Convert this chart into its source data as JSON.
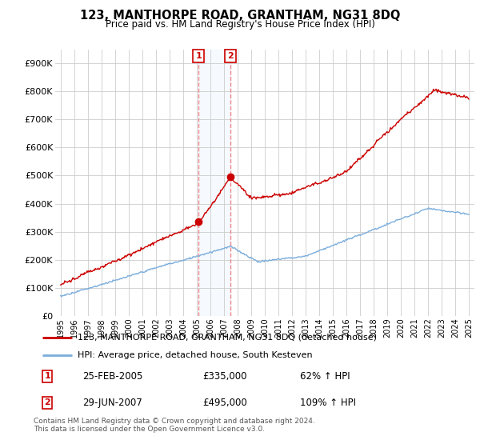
{
  "title": "123, MANTHORPE ROAD, GRANTHAM, NG31 8DQ",
  "subtitle": "Price paid vs. HM Land Registry's House Price Index (HPI)",
  "legend_line1": "123, MANTHORPE ROAD, GRANTHAM, NG31 8DQ (detached house)",
  "legend_line2": "HPI: Average price, detached house, South Kesteven",
  "sale1_date": "25-FEB-2005",
  "sale1_price": "£335,000",
  "sale1_hpi": "62% ↑ HPI",
  "sale2_date": "29-JUN-2007",
  "sale2_price": "£495,000",
  "sale2_hpi": "109% ↑ HPI",
  "footnote": "Contains HM Land Registry data © Crown copyright and database right 2024.\nThis data is licensed under the Open Government Licence v3.0.",
  "red_color": "#cc0000",
  "blue_color": "#7aaddb",
  "vline_color": "#ee8888",
  "shade_color": "#ddeeff",
  "grid_color": "#cccccc",
  "ylim": [
    0,
    950000
  ],
  "yticks": [
    0,
    100000,
    200000,
    300000,
    400000,
    500000,
    600000,
    700000,
    800000,
    900000
  ],
  "ytick_labels": [
    "£0",
    "£100K",
    "£200K",
    "£300K",
    "£400K",
    "£500K",
    "£600K",
    "£700K",
    "£800K",
    "£900K"
  ],
  "sale1_x": 2005.15,
  "sale1_y": 335000,
  "sale2_x": 2007.49,
  "sale2_y": 495000,
  "xlim_left": 1994.6,
  "xlim_right": 2025.4
}
